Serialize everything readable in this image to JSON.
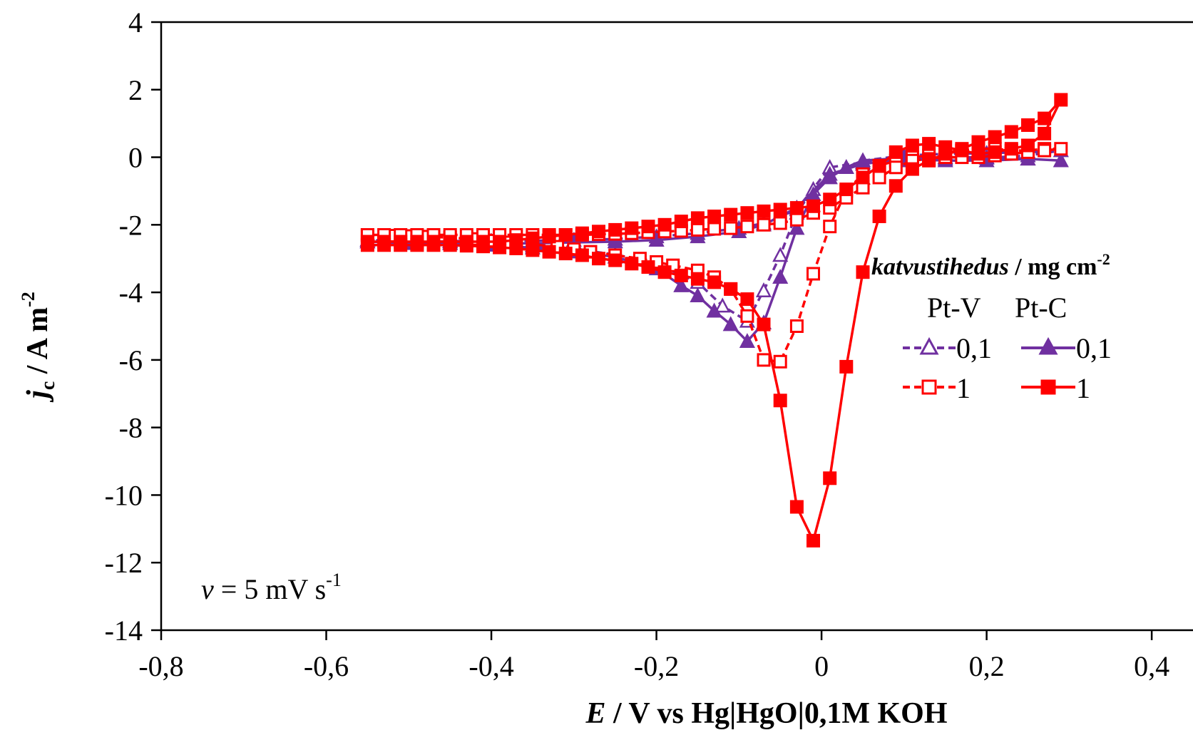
{
  "chart_data": {
    "type": "line",
    "xlabel": {
      "var": "E",
      "text": " / V vs Hg|HgO|0,1M KOH"
    },
    "ylabel": {
      "var": "j",
      "sub": "c",
      "text": " / A m",
      "sup": "-2"
    },
    "xlim": [
      -0.8,
      0.45
    ],
    "ylim": [
      -14,
      4
    ],
    "x_ticks": [
      -0.8,
      -0.6,
      -0.4,
      -0.2,
      0,
      0.2,
      0.4
    ],
    "x_tick_labels": [
      "-0,8",
      "-0,6",
      "-0,4",
      "-0,2",
      "0",
      "0,2",
      "0,4"
    ],
    "y_ticks": [
      4,
      2,
      0,
      -2,
      -4,
      -6,
      -8,
      -10,
      -12,
      -14
    ],
    "y_tick_labels": [
      "4",
      "2",
      "0",
      "-2",
      "-4",
      "-6",
      "-8",
      "-10",
      "-12",
      "-14"
    ],
    "grid": false,
    "annotation": {
      "var": "v",
      "text": " = 5 mV s",
      "sup": "-1"
    },
    "legend": {
      "title_italic": "katvustihedus",
      "title_rest": " / mg cm",
      "title_sup": "-2",
      "col1": "Pt-V",
      "col2": "Pt-C",
      "row_labels": [
        "0,1",
        "1"
      ],
      "placement": "right"
    },
    "colors": {
      "purple": "#7030A0",
      "red": "#FF0000"
    },
    "series": [
      {
        "group": "Pt-V",
        "loading": "0,1",
        "color": "#7030A0",
        "marker": "triangle",
        "filled": false,
        "dashed": true,
        "x": [
          -0.55,
          -0.5,
          -0.45,
          -0.4,
          -0.35,
          -0.3,
          -0.25,
          -0.2,
          -0.15,
          -0.12,
          -0.09,
          -0.07,
          -0.05,
          -0.03,
          -0.01,
          0.01,
          0.03,
          0.05,
          0.1,
          0.15,
          0.2,
          0.25,
          0.29,
          0.25,
          0.2,
          0.15,
          0.1,
          0.05,
          0.01,
          -0.03,
          -0.07,
          -0.1,
          -0.15,
          -0.2,
          -0.25,
          -0.3,
          -0.35,
          -0.4,
          -0.45,
          -0.5,
          -0.55
        ],
        "y": [
          -2.45,
          -2.47,
          -2.5,
          -2.55,
          -2.62,
          -2.72,
          -2.88,
          -3.15,
          -3.7,
          -4.4,
          -4.85,
          -3.95,
          -2.9,
          -1.65,
          -0.95,
          -0.6,
          -0.3,
          -0.1,
          0.05,
          0.1,
          0.12,
          0.15,
          0.2,
          0.05,
          -0.02,
          -0.05,
          -0.1,
          -0.15,
          -0.3,
          -1.55,
          -1.95,
          -2.1,
          -2.25,
          -2.35,
          -2.42,
          -2.45,
          -2.47,
          -2.48,
          -2.48,
          -2.48,
          -2.45
        ]
      },
      {
        "group": "Pt-C",
        "loading": "0,1",
        "color": "#7030A0",
        "marker": "triangle",
        "filled": true,
        "dashed": false,
        "x": [
          -0.55,
          -0.5,
          -0.45,
          -0.4,
          -0.35,
          -0.3,
          -0.25,
          -0.2,
          -0.17,
          -0.15,
          -0.13,
          -0.11,
          -0.09,
          -0.07,
          -0.05,
          -0.03,
          -0.01,
          0.01,
          0.03,
          0.05,
          0.1,
          0.15,
          0.2,
          0.25,
          0.29,
          0.25,
          0.2,
          0.15,
          0.1,
          0.05,
          0.01,
          -0.03,
          -0.07,
          -0.1,
          -0.15,
          -0.2,
          -0.25,
          -0.3,
          -0.35,
          -0.4,
          -0.45,
          -0.5,
          -0.55
        ],
        "y": [
          -2.5,
          -2.52,
          -2.55,
          -2.6,
          -2.68,
          -2.8,
          -2.95,
          -3.3,
          -3.8,
          -4.1,
          -4.55,
          -4.95,
          -5.45,
          -4.9,
          -3.55,
          -2.1,
          -1.1,
          -0.6,
          -0.3,
          -0.1,
          -0.02,
          0.0,
          0.0,
          -0.05,
          -0.1,
          -0.05,
          -0.1,
          -0.1,
          -0.05,
          -0.2,
          -0.5,
          -1.5,
          -2.0,
          -2.2,
          -2.35,
          -2.45,
          -2.5,
          -2.52,
          -2.55,
          -2.55,
          -2.55,
          -2.55,
          -2.5
        ]
      },
      {
        "group": "Pt-V",
        "loading": "1",
        "color": "#FF0000",
        "marker": "square",
        "filled": false,
        "dashed": true,
        "x": [
          -0.55,
          -0.52,
          -0.5,
          -0.48,
          -0.45,
          -0.42,
          -0.4,
          -0.38,
          -0.35,
          -0.32,
          -0.3,
          -0.28,
          -0.25,
          -0.22,
          -0.2,
          -0.18,
          -0.15,
          -0.13,
          -0.11,
          -0.09,
          -0.07,
          -0.05,
          -0.03,
          -0.01,
          0.01,
          0.03,
          0.05,
          0.07,
          0.09,
          0.11,
          0.13,
          0.15,
          0.17,
          0.19,
          0.21,
          0.23,
          0.25,
          0.27,
          0.29,
          0.27,
          0.25,
          0.23,
          0.21,
          0.19,
          0.17,
          0.15,
          0.13,
          0.11,
          0.09,
          0.07,
          0.05,
          0.03,
          0.01,
          -0.01,
          -0.03,
          -0.05,
          -0.07,
          -0.09,
          -0.11,
          -0.13,
          -0.15,
          -0.17,
          -0.19,
          -0.21,
          -0.23,
          -0.25,
          -0.27,
          -0.29,
          -0.31,
          -0.33,
          -0.35,
          -0.37,
          -0.39,
          -0.41,
          -0.43,
          -0.45,
          -0.47,
          -0.49,
          -0.51,
          -0.53,
          -0.55
        ],
        "y": [
          -2.3,
          -2.32,
          -2.33,
          -2.35,
          -2.38,
          -2.42,
          -2.47,
          -2.52,
          -2.58,
          -2.65,
          -2.72,
          -2.8,
          -2.9,
          -3.0,
          -3.1,
          -3.2,
          -3.35,
          -3.55,
          -3.9,
          -4.7,
          -6.0,
          -6.05,
          -5.0,
          -3.45,
          -2.05,
          -1.0,
          -0.5,
          -0.25,
          -0.1,
          0.0,
          0.05,
          0.1,
          0.2,
          0.25,
          0.25,
          0.2,
          0.2,
          0.25,
          0.25,
          0.2,
          0.15,
          0.1,
          0.05,
          0.0,
          0.0,
          0.0,
          -0.05,
          -0.1,
          -0.3,
          -0.6,
          -0.9,
          -1.2,
          -1.5,
          -1.65,
          -1.85,
          -1.95,
          -2.0,
          -2.05,
          -2.1,
          -2.12,
          -2.15,
          -2.18,
          -2.2,
          -2.22,
          -2.25,
          -2.27,
          -2.28,
          -2.3,
          -2.3,
          -2.3,
          -2.3,
          -2.3,
          -2.3,
          -2.3,
          -2.3,
          -2.3,
          -2.3,
          -2.3,
          -2.3,
          -2.3,
          -2.3
        ]
      },
      {
        "group": "Pt-C",
        "loading": "1",
        "color": "#FF0000",
        "marker": "square",
        "filled": true,
        "dashed": false,
        "x": [
          -0.55,
          -0.53,
          -0.51,
          -0.49,
          -0.47,
          -0.45,
          -0.43,
          -0.41,
          -0.39,
          -0.37,
          -0.35,
          -0.33,
          -0.31,
          -0.29,
          -0.27,
          -0.25,
          -0.23,
          -0.21,
          -0.19,
          -0.17,
          -0.15,
          -0.13,
          -0.11,
          -0.09,
          -0.07,
          -0.05,
          -0.03,
          -0.01,
          0.01,
          0.03,
          0.05,
          0.07,
          0.09,
          0.11,
          0.13,
          0.15,
          0.17,
          0.19,
          0.21,
          0.23,
          0.25,
          0.27,
          0.29,
          0.27,
          0.25,
          0.23,
          0.21,
          0.19,
          0.17,
          0.15,
          0.13,
          0.11,
          0.09,
          0.07,
          0.05,
          0.03,
          0.01,
          -0.01,
          -0.03,
          -0.05,
          -0.07,
          -0.09,
          -0.11,
          -0.13,
          -0.15,
          -0.17,
          -0.19,
          -0.21,
          -0.23,
          -0.25,
          -0.27,
          -0.29,
          -0.31,
          -0.33,
          -0.35,
          -0.37,
          -0.39,
          -0.41,
          -0.43,
          -0.45,
          -0.47,
          -0.49,
          -0.51,
          -0.53,
          -0.55
        ],
        "y": [
          -2.6,
          -2.6,
          -2.6,
          -2.6,
          -2.6,
          -2.6,
          -2.62,
          -2.64,
          -2.67,
          -2.7,
          -2.75,
          -2.8,
          -2.85,
          -2.9,
          -3.0,
          -3.05,
          -3.15,
          -3.25,
          -3.4,
          -3.5,
          -3.6,
          -3.7,
          -3.9,
          -4.2,
          -4.95,
          -7.2,
          -10.35,
          -11.35,
          -9.5,
          -6.2,
          -3.4,
          -1.75,
          -0.85,
          -0.35,
          -0.1,
          0.1,
          0.25,
          0.45,
          0.6,
          0.75,
          0.95,
          1.15,
          1.7,
          0.7,
          0.35,
          0.25,
          0.15,
          0.1,
          0.2,
          0.3,
          0.4,
          0.35,
          0.15,
          -0.25,
          -0.6,
          -0.95,
          -1.25,
          -1.45,
          -1.5,
          -1.55,
          -1.6,
          -1.65,
          -1.7,
          -1.75,
          -1.8,
          -1.9,
          -2.0,
          -2.05,
          -2.1,
          -2.15,
          -2.2,
          -2.25,
          -2.3,
          -2.35,
          -2.4,
          -2.45,
          -2.5,
          -2.5,
          -2.5,
          -2.5,
          -2.5,
          -2.5,
          -2.5,
          -2.5,
          -2.5
        ]
      }
    ]
  }
}
